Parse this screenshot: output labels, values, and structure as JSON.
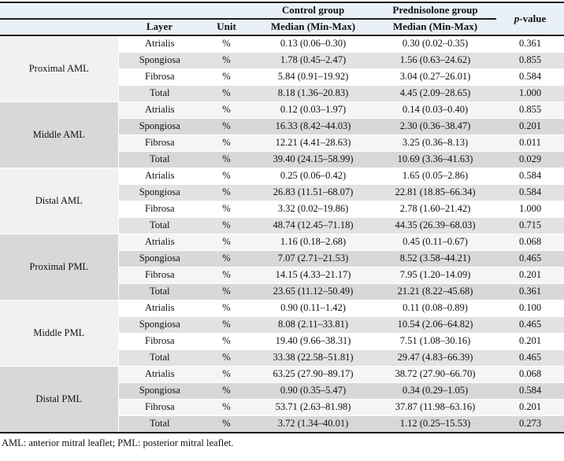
{
  "colors": {
    "header_bg": "#e9f0f8",
    "rule": "#1d1d1d",
    "row_gray_light": "#e2e2e2",
    "group_cell_light": "#f1f1f1",
    "row_gray_dark": "#d8d8d8",
    "group_cell_dark": "#d8d8d8"
  },
  "table": {
    "header": {
      "control_group": "Control group",
      "prednisolone_group": "Prednisolone group",
      "p_italic": "p",
      "p_suffix": "-value",
      "layer": "Layer",
      "unit": "Unit",
      "median_minmax": "Median (Min-Max)"
    },
    "groups": [
      {
        "name": "Proximal AML",
        "rows": [
          {
            "layer": "Atrialis",
            "unit": "%",
            "control": "0.13 (0.06–0.30)",
            "prednisolone": "0.30 (0.02–0.35)",
            "p": "0.361"
          },
          {
            "layer": "Spongiosa",
            "unit": "%",
            "control": "1.78 (0.45–2.47)",
            "prednisolone": "1.56 (0.63–24.62)",
            "p": "0.855"
          },
          {
            "layer": "Fibrosa",
            "unit": "%",
            "control": "5.84 (0.91–19.92)",
            "prednisolone": "3.04 (0.27–26.01)",
            "p": "0.584"
          },
          {
            "layer": "Total",
            "unit": "%",
            "control": "8.18 (1.36–20.83)",
            "prednisolone": "4.45 (2.09–28.65)",
            "p": "1.000"
          }
        ]
      },
      {
        "name": "Middle AML",
        "rows": [
          {
            "layer": "Atrialis",
            "unit": "%",
            "control": "0.12 (0.03–1.97)",
            "prednisolone": "0.14 (0.03–0.40)",
            "p": "0.855"
          },
          {
            "layer": "Spongiosa",
            "unit": "%",
            "control": "16.33 (8.42–44.03)",
            "prednisolone": "2.30 (0.36–38.47)",
            "p": "0.201"
          },
          {
            "layer": "Fibrosa",
            "unit": "%",
            "control": "12.21 (4.41–28.63)",
            "prednisolone": "3.25 (0.36–8.13)",
            "p": "0.011"
          },
          {
            "layer": "Total",
            "unit": "%",
            "control": "39.40 (24.15–58.99)",
            "prednisolone": "10.69 (3.36–41.63)",
            "p": "0.029"
          }
        ]
      },
      {
        "name": "Distal AML",
        "rows": [
          {
            "layer": "Atrialis",
            "unit": "%",
            "control": "0.25 (0.06–0.42)",
            "prednisolone": "1.65 (0.05–2.86)",
            "p": "0.584"
          },
          {
            "layer": "Spongiosa",
            "unit": "%",
            "control": "26.83 (11.51–68.07)",
            "prednisolone": "22.81 (18.85–66.34)",
            "p": "0.584"
          },
          {
            "layer": "Fibrosa",
            "unit": "%",
            "control": "3.32 (0.02–19.86)",
            "prednisolone": "2.78 (1.60–21.42)",
            "p": "1.000"
          },
          {
            "layer": "Total",
            "unit": "%",
            "control": "48.74 (12.45–71.18)",
            "prednisolone": "44.35 (26.39–68.03)",
            "p": "0.715"
          }
        ]
      },
      {
        "name": "Proximal PML",
        "rows": [
          {
            "layer": "Atrialis",
            "unit": "%",
            "control": "1.16 (0.18–2.68)",
            "prednisolone": "0.45 (0.11–0.67)",
            "p": "0.068"
          },
          {
            "layer": "Spongiosa",
            "unit": "%",
            "control": "7.07 (2.71–21.53)",
            "prednisolone": "8.52 (3.58–44.21)",
            "p": "0.465"
          },
          {
            "layer": "Fibrosa",
            "unit": "%",
            "control": "14.15 (4.33–21.17)",
            "prednisolone": "7.95 (1.20–14.09)",
            "p": "0.201"
          },
          {
            "layer": "Total",
            "unit": "%",
            "control": "23.65 (11.12–50.49)",
            "prednisolone": "21.21 (8.22–45.68)",
            "p": "0.361"
          }
        ]
      },
      {
        "name": "Middle PML",
        "rows": [
          {
            "layer": "Atrialis",
            "unit": "%",
            "control": "0.90 (0.11–1.42)",
            "prednisolone": "0.11 (0.08–0.89)",
            "p": "0.100"
          },
          {
            "layer": "Spongiosa",
            "unit": "%",
            "control": "8.08 (2.11–33.81)",
            "prednisolone": "10.54 (2.06–64.82)",
            "p": "0.465"
          },
          {
            "layer": "Fibrosa",
            "unit": "%",
            "control": "19.40 (9.66–38.31)",
            "prednisolone": "7.51 (1.08–30.16)",
            "p": "0.201"
          },
          {
            "layer": "Total",
            "unit": "%",
            "control": "33.38 (22.58–51.81)",
            "prednisolone": "29.47 (4.83–66.39)",
            "p": "0.465"
          }
        ]
      },
      {
        "name": "Distal PML",
        "rows": [
          {
            "layer": "Atrialis",
            "unit": "%",
            "control": "63.25 (27.90–89.17)",
            "prednisolone": "38.72 (27.90–66.70)",
            "p": "0.068"
          },
          {
            "layer": "Spongiosa",
            "unit": "%",
            "control": "0.90 (0.35–5.47)",
            "prednisolone": "0.34 (0.29–1.05)",
            "p": "0.584"
          },
          {
            "layer": "Fibrosa",
            "unit": "%",
            "control": "53.71 (2.63–81.98)",
            "prednisolone": "37.87 (11.98–63.16)",
            "p": "0.201"
          },
          {
            "layer": "Total",
            "unit": "%",
            "control": "3.72 (1.34–40.01)",
            "prednisolone": "1.12 (0.25–15.53)",
            "p": "0.273"
          }
        ]
      }
    ],
    "footnote": "AML: anterior mitral leaflet; PML: posterior mitral leaflet."
  }
}
